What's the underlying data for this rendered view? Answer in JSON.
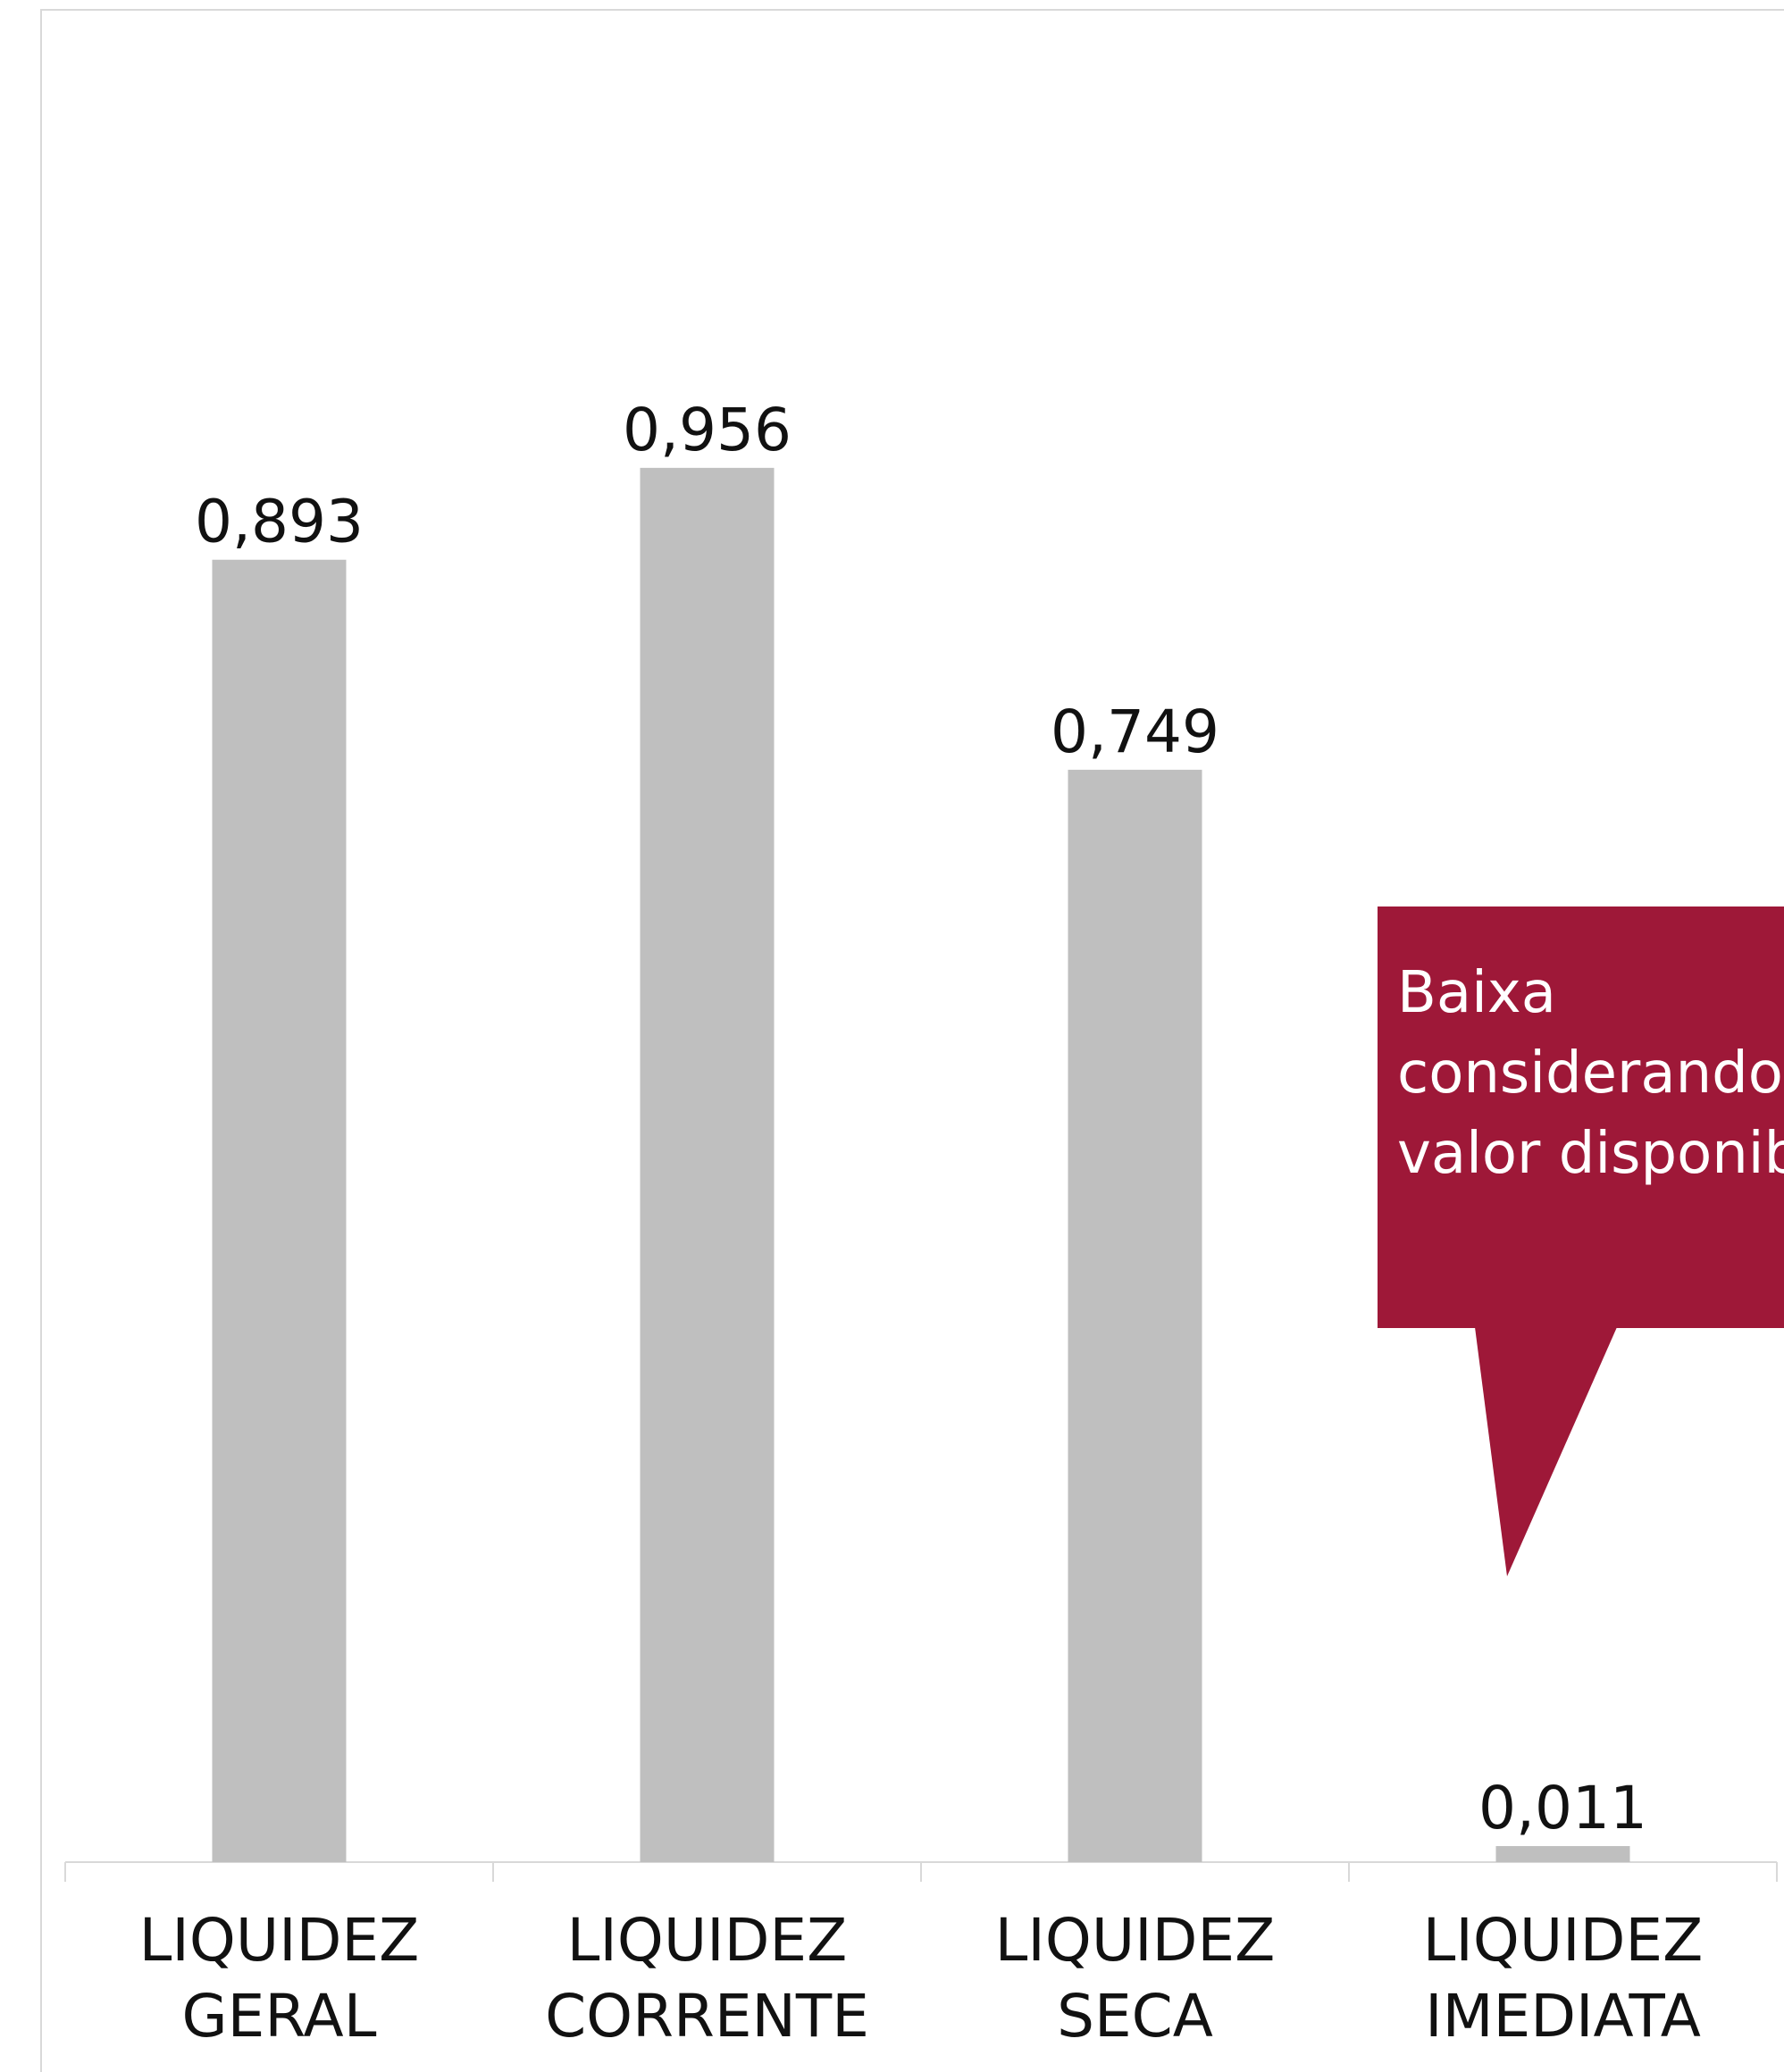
{
  "colors": {
    "bar": "#bfbfbf",
    "callout": "#9e1838",
    "axis": "#d9d9d9",
    "text": "#111111",
    "callout_text": "#ffffff"
  },
  "callout": {
    "text": "Baixa liquidez considerando apenas o valor disponibilidades"
  },
  "chart_data": {
    "type": "bar",
    "categories": [
      "LIQUIDEZ GERAL",
      "LIQUIDEZ CORRENTE",
      "LIQUIDEZ SECA",
      "LIQUIDEZ IMEDIATA"
    ],
    "category_lines": [
      [
        "LIQUIDEZ",
        "GERAL"
      ],
      [
        "LIQUIDEZ",
        "CORRENTE"
      ],
      [
        "LIQUIDEZ",
        "SECA"
      ],
      [
        "LIQUIDEZ",
        "IMEDIATA"
      ]
    ],
    "values": [
      0.893,
      0.956,
      0.749,
      0.011
    ],
    "value_labels": [
      "0,893",
      "0,956",
      "0,749",
      "0,011"
    ],
    "title": "",
    "xlabel": "",
    "ylabel": "",
    "ylim": [
      0,
      1.15
    ],
    "grid": false,
    "legend": "none"
  }
}
